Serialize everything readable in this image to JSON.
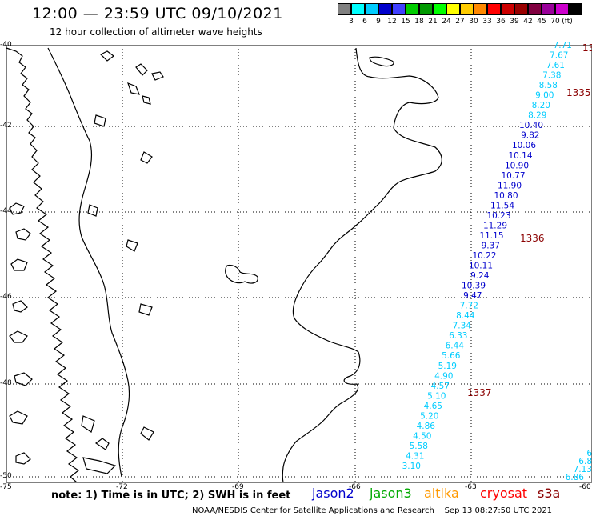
{
  "header": {
    "title": "12:00 — 23:59 UTC 09/10/2021",
    "subtitle": "12 hour collection of altimeter wave heights"
  },
  "legend": {
    "unit": "(ft)",
    "colors": [
      "#808080",
      "#00ffff",
      "#00ccff",
      "#0000cc",
      "#4040ff",
      "#00cc00",
      "#009900",
      "#00ff00",
      "#ffff00",
      "#ffcc00",
      "#ff8800",
      "#ff0000",
      "#cc0000",
      "#990000",
      "#800040",
      "#990099",
      "#cc00cc",
      "#000000"
    ],
    "labels": [
      "3",
      "6",
      "9",
      "12",
      "15",
      "18",
      "21",
      "24",
      "27",
      "30",
      "33",
      "36",
      "39",
      "42",
      "45",
      "70"
    ]
  },
  "axes": {
    "y_labels": [
      "-40",
      "-42",
      "-44",
      "-46",
      "-48",
      "-50"
    ],
    "x_labels": [
      "-75",
      "-72",
      "-69",
      "-66",
      "-63",
      "-60"
    ]
  },
  "passes": [
    {
      "id": "1335",
      "color": "#8b0000"
    },
    {
      "id": "1336",
      "color": "#8b0000"
    },
    {
      "id": "1337",
      "color": "#8b0000"
    }
  ],
  "pass_cut": "13",
  "track_a": {
    "values": [
      "7.71",
      "7.67",
      "7.61",
      "7.38",
      "8.58",
      "9.00",
      "8.20",
      "8.29",
      "10.40",
      "9.82",
      "10.06",
      "10.14",
      "10.90",
      "10.77",
      "11.90",
      "10.80",
      "11.54",
      "10.23",
      "11.29",
      "11.15",
      "9.37",
      "10.22",
      "10.11",
      "9.24",
      "10.39",
      "9.47",
      "7.72",
      "8.44",
      "7.34",
      "6.33",
      "6.44",
      "5.66",
      "5.19",
      "4.90",
      "4.57",
      "5.10",
      "4.65",
      "5.20",
      "4.86",
      "4.50",
      "5.58",
      "4.31",
      "3.10"
    ],
    "colors": [
      "#00ccff",
      "#00ccff",
      "#00ccff",
      "#00ccff",
      "#00ccff",
      "#00ccff",
      "#00ccff",
      "#00ccff",
      "#0000cc",
      "#0000cc",
      "#0000cc",
      "#0000cc",
      "#0000cc",
      "#0000cc",
      "#0000cc",
      "#0000cc",
      "#0000cc",
      "#0000cc",
      "#0000cc",
      "#0000cc",
      "#0000cc",
      "#0000cc",
      "#0000cc",
      "#0000cc",
      "#0000cc",
      "#0000cc",
      "#00ccff",
      "#00ccff",
      "#00ccff",
      "#00ccff",
      "#00ccff",
      "#00ccff",
      "#00ccff",
      "#00ccff",
      "#00ccff",
      "#00ccff",
      "#00ccff",
      "#00ccff",
      "#00ccff",
      "#00ccff",
      "#00ccff",
      "#00ccff",
      "#00ccff"
    ]
  },
  "track_b": {
    "values": [
      "6",
      "6.8",
      "7.13",
      "6.86"
    ],
    "color": "#00ccff"
  },
  "footer": {
    "note": "note: 1) Time is in UTC; 2) SWH is in feet",
    "satellites": [
      {
        "name": "jason2",
        "color": "#0000cc"
      },
      {
        "name": "jason3",
        "color": "#00aa00"
      },
      {
        "name": "altika",
        "color": "#ff9900"
      },
      {
        "name": "cryosat",
        "color": "#ff0000"
      },
      {
        "name": "s3a",
        "color": "#8b0000"
      }
    ],
    "credit": "NOAA/NESDIS Center for Satellite Applications and Research    Sep 13 08:27:50 UTC 2021"
  }
}
